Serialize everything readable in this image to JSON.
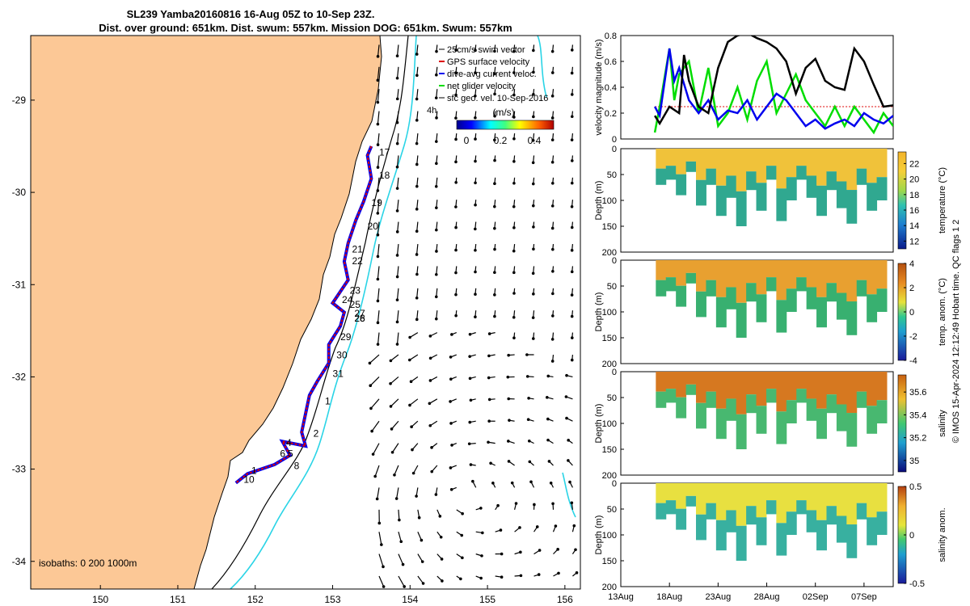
{
  "title_line1": "SL239 Yamba20160816 16-Aug 05Z to 10-Sep 23Z.",
  "title_line2": "Dist. over ground: 651km. Dist. swum: 557km. Mission DOG: 651km. Swum: 557km",
  "chart_data": [
    {
      "type": "map",
      "xlim": [
        149.1,
        156.2
      ],
      "ylim": [
        -34.3,
        -28.3
      ],
      "xticks": [
        "150",
        "151",
        "152",
        "153",
        "154",
        "155",
        "156"
      ],
      "yticks": [
        "-29",
        "-30",
        "-31",
        "-32",
        "-33",
        "-34"
      ],
      "legend": [
        "25cm/s swim vector",
        "GPS surface velocity",
        "dive-avg current veloc.",
        "net glider velocity",
        "sfc geo. vel. 10-Sep-2016"
      ],
      "legend_note": "4h",
      "colorbar": {
        "title": "(m/s)",
        "ticks": [
          "0",
          "0.2",
          "0.4"
        ],
        "range": [
          0,
          0.45
        ]
      },
      "isobaths_label": "isobaths: 0   200  1000m",
      "track": [
        [
          153.5,
          -29.5
        ],
        [
          153.45,
          -29.6
        ],
        [
          153.5,
          -29.85
        ],
        [
          153.4,
          -30.1
        ],
        [
          153.3,
          -30.3
        ],
        [
          153.2,
          -30.55
        ],
        [
          153.15,
          -30.75
        ],
        [
          153.2,
          -30.95
        ],
        [
          153.0,
          -31.2
        ],
        [
          153.15,
          -31.3
        ],
        [
          153.1,
          -31.45
        ],
        [
          152.95,
          -31.65
        ],
        [
          152.95,
          -31.85
        ],
        [
          152.8,
          -32.05
        ],
        [
          152.7,
          -32.2
        ],
        [
          152.65,
          -32.4
        ],
        [
          152.6,
          -32.6
        ],
        [
          152.65,
          -32.75
        ],
        [
          152.35,
          -32.7
        ],
        [
          152.45,
          -32.85
        ],
        [
          152.25,
          -32.95
        ],
        [
          151.9,
          -33.05
        ],
        [
          151.75,
          -33.15
        ]
      ],
      "day_labels": [
        {
          "t": "17",
          "lon": 153.6,
          "lat": -29.6
        },
        {
          "t": "18",
          "lon": 153.6,
          "lat": -29.85
        },
        {
          "t": "19",
          "lon": 153.5,
          "lat": -30.15
        },
        {
          "t": "20",
          "lon": 153.45,
          "lat": -30.4
        },
        {
          "t": "21",
          "lon": 153.25,
          "lat": -30.65
        },
        {
          "t": "22",
          "lon": 153.25,
          "lat": -30.78
        },
        {
          "t": "23",
          "lon": 153.22,
          "lat": -31.1
        },
        {
          "t": "24",
          "lon": 153.12,
          "lat": -31.2
        },
        {
          "t": "25",
          "lon": 153.22,
          "lat": -31.25
        },
        {
          "t": "27",
          "lon": 153.28,
          "lat": -31.35
        },
        {
          "t": "26",
          "lon": 153.28,
          "lat": -31.4
        },
        {
          "t": "28",
          "lon": 153.28,
          "lat": -31.4
        },
        {
          "t": "29",
          "lon": 153.1,
          "lat": -31.6
        },
        {
          "t": "30",
          "lon": 153.05,
          "lat": -31.8
        },
        {
          "t": "31",
          "lon": 153.0,
          "lat": -32.0
        },
        {
          "t": "1",
          "lon": 152.9,
          "lat": -32.3
        },
        {
          "t": "2",
          "lon": 152.75,
          "lat": -32.65
        },
        {
          "t": "4",
          "lon": 152.4,
          "lat": -32.75
        },
        {
          "t": "6",
          "lon": 152.32,
          "lat": -32.87
        },
        {
          "t": "5",
          "lon": 152.42,
          "lat": -32.87
        },
        {
          "t": "8",
          "lon": 152.5,
          "lat": -33.0
        },
        {
          "t": "1",
          "lon": 151.95,
          "lat": -33.05
        },
        {
          "t": "10",
          "lon": 151.85,
          "lat": -33.15
        }
      ]
    },
    {
      "type": "line",
      "ylabel": "velocity magnitude (m/s)",
      "ylim": [
        0,
        0.8
      ],
      "yticks": [
        "0",
        "0.2",
        "0.4",
        "0.6",
        "0.8"
      ],
      "xlim_days": [
        13,
        41
      ],
      "series": [
        {
          "color": "#000000",
          "x": [
            16.5,
            17,
            18,
            19,
            19.5,
            20,
            21,
            22,
            23,
            24,
            25,
            26,
            27,
            28,
            29,
            30,
            31,
            32,
            33,
            34,
            35,
            36,
            37,
            38,
            39,
            40,
            41
          ],
          "values": [
            0.18,
            0.12,
            0.25,
            0.2,
            0.65,
            0.45,
            0.25,
            0.2,
            0.55,
            0.75,
            0.8,
            0.82,
            0.78,
            0.75,
            0.7,
            0.6,
            0.35,
            0.55,
            0.62,
            0.45,
            0.4,
            0.38,
            0.7,
            0.6,
            0.42,
            0.25,
            0.26
          ]
        },
        {
          "color": "#0000ee",
          "x": [
            16.5,
            17,
            18,
            18.5,
            19,
            20,
            21,
            22,
            23,
            24,
            25,
            26,
            27,
            28,
            29,
            30,
            31,
            32,
            33,
            34,
            35,
            36,
            37,
            38,
            39,
            40,
            41
          ],
          "values": [
            0.25,
            0.18,
            0.7,
            0.45,
            0.55,
            0.3,
            0.2,
            0.3,
            0.15,
            0.22,
            0.2,
            0.3,
            0.15,
            0.25,
            0.35,
            0.3,
            0.2,
            0.1,
            0.15,
            0.08,
            0.12,
            0.15,
            0.1,
            0.2,
            0.15,
            0.12,
            0.18
          ]
        },
        {
          "color": "#00dd00",
          "x": [
            16.5,
            17,
            18,
            18.5,
            19,
            20,
            21,
            22,
            23,
            24,
            25,
            26,
            27,
            28,
            29,
            30,
            31,
            32,
            33,
            34,
            35,
            36,
            37,
            38,
            39,
            40,
            41
          ],
          "values": [
            0.05,
            0.25,
            0.7,
            0.3,
            0.5,
            0.6,
            0.2,
            0.55,
            0.1,
            0.2,
            0.4,
            0.15,
            0.45,
            0.6,
            0.2,
            0.35,
            0.5,
            0.3,
            0.2,
            0.1,
            0.25,
            0.1,
            0.25,
            0.15,
            0.05,
            0.2,
            0.1
          ]
        }
      ],
      "ref_line": {
        "color": "#dd0000",
        "value": 0.25
      }
    },
    {
      "type": "heatmap",
      "ylabel": "Depth (m)",
      "colorbar_label": "temperature (°C)",
      "colorbar_ticks": [
        "12",
        "14",
        "16",
        "18",
        "20",
        "22"
      ],
      "colorbar_range": [
        11,
        23.5
      ],
      "ylim": [
        0,
        200
      ],
      "yticks": [
        "0",
        "50",
        "100",
        "150",
        "200"
      ]
    },
    {
      "type": "heatmap",
      "ylabel": "Depth (m)",
      "colorbar_label": "temp. anom. (°C)",
      "colorbar_ticks": [
        "-4",
        "-2",
        "0",
        "2",
        "4"
      ],
      "colorbar_range": [
        -4,
        4
      ],
      "ylim": [
        0,
        200
      ],
      "yticks": [
        "0",
        "50",
        "100",
        "150",
        "200"
      ]
    },
    {
      "type": "heatmap",
      "ylabel": "Depth (m)",
      "colorbar_label": "salinity",
      "colorbar_ticks": [
        "35",
        "35.2",
        "35.4",
        "35.6"
      ],
      "colorbar_range": [
        34.9,
        35.75
      ],
      "ylim": [
        0,
        200
      ],
      "yticks": [
        "0",
        "50",
        "100",
        "150",
        "200"
      ]
    },
    {
      "type": "heatmap",
      "ylabel": "Depth (m)",
      "colorbar_label": "salinity anom.",
      "colorbar_ticks": [
        "-0.5",
        "0",
        "0.5"
      ],
      "colorbar_range": [
        -0.5,
        0.5
      ],
      "ylim": [
        0,
        200
      ],
      "yticks": [
        "0",
        "50",
        "100",
        "150",
        "200"
      ],
      "xticks": [
        "13Aug",
        "18Aug",
        "23Aug",
        "28Aug",
        "02Sep",
        "07Sep"
      ]
    }
  ],
  "side_note": "© IMOS 15-Apr-2024 12:12:49 Hobart time. QC flags 1  2",
  "colors": {
    "land": "#fcc896",
    "coast": "#000000",
    "contour_200": "#000000",
    "contour_1000": "#2ad4e6",
    "track_red": "#dd0000",
    "track_blue": "#0000ee"
  }
}
